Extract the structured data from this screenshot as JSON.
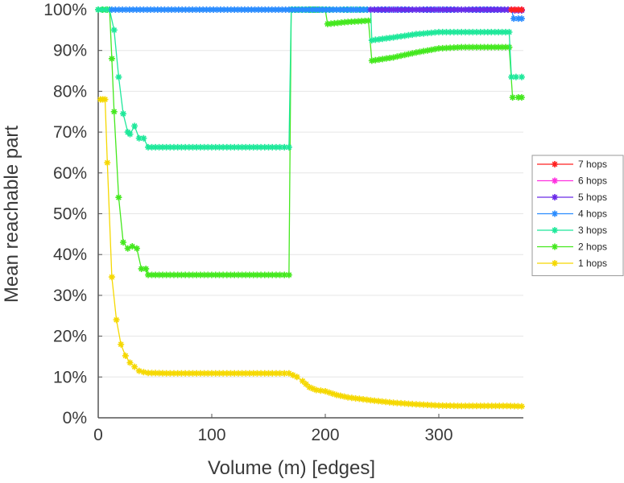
{
  "chart_data": {
    "type": "line",
    "title": "",
    "xlabel": "Volume (m) [edges]",
    "ylabel": "Mean reachable part",
    "xlim": [
      0,
      375
    ],
    "ylim": [
      0,
      100
    ],
    "xticks": [
      0,
      100,
      200,
      300
    ],
    "xtick_labels": [
      "0",
      "100",
      "200",
      "300"
    ],
    "yticks": [
      0,
      10,
      20,
      30,
      40,
      50,
      60,
      70,
      80,
      90,
      100
    ],
    "ytick_labels": [
      "0%",
      "10%",
      "20%",
      "30%",
      "40%",
      "50%",
      "60%",
      "70%",
      "80%",
      "90%",
      "100%"
    ],
    "grid": true,
    "legend_position": "right",
    "marker": "asterisk",
    "series": [
      {
        "name": "7 hops",
        "color": "#ff2020",
        "points": [
          [
            364,
            100
          ],
          [
            367,
            100
          ],
          [
            370,
            100
          ],
          [
            373,
            100
          ]
        ]
      },
      {
        "name": "6 hops",
        "color": "#ff30e0",
        "points": [
          [
            364,
            100
          ],
          [
            367,
            100
          ],
          [
            370,
            100
          ],
          [
            373,
            100
          ]
        ]
      },
      {
        "name": "5 hops",
        "color": "#6a2ae8",
        "points": [
          [
            240,
            100
          ],
          [
            260,
            100
          ],
          [
            280,
            100
          ],
          [
            300,
            100
          ],
          [
            320,
            100
          ],
          [
            340,
            100
          ],
          [
            364,
            100
          ],
          [
            367,
            99.8
          ],
          [
            370,
            99.8
          ],
          [
            373,
            99.8
          ]
        ]
      },
      {
        "name": "4 hops",
        "color": "#2a8cff",
        "points": [
          [
            12,
            100
          ],
          [
            40,
            100
          ],
          [
            80,
            100
          ],
          [
            120,
            100
          ],
          [
            150,
            100
          ],
          [
            168,
            100
          ],
          [
            240,
            100
          ],
          [
            280,
            100
          ],
          [
            320,
            100
          ],
          [
            364,
            100
          ],
          [
            366,
            97.8
          ],
          [
            370,
            97.8
          ],
          [
            373,
            97.8
          ]
        ]
      },
      {
        "name": "3 hops",
        "color": "#1ee89a",
        "points": [
          [
            0,
            100
          ],
          [
            10,
            100
          ],
          [
            14,
            95
          ],
          [
            18,
            83.5
          ],
          [
            22,
            74.5
          ],
          [
            26,
            70
          ],
          [
            28,
            69.5
          ],
          [
            32,
            71.5
          ],
          [
            36,
            68.5
          ],
          [
            40,
            68.5
          ],
          [
            44,
            66.3
          ],
          [
            60,
            66.3
          ],
          [
            80,
            66.3
          ],
          [
            100,
            66.3
          ],
          [
            120,
            66.3
          ],
          [
            140,
            66.3
          ],
          [
            160,
            66.3
          ],
          [
            168,
            66.3
          ],
          [
            170,
            100
          ],
          [
            200,
            100
          ],
          [
            220,
            100
          ],
          [
            240,
            100
          ],
          [
            241,
            92.5
          ],
          [
            260,
            93.2
          ],
          [
            280,
            94
          ],
          [
            300,
            94.5
          ],
          [
            320,
            94.5
          ],
          [
            340,
            94.5
          ],
          [
            362,
            94.5
          ],
          [
            364,
            83.5
          ],
          [
            368,
            83.5
          ],
          [
            373,
            83.5
          ]
        ]
      },
      {
        "name": "2 hops",
        "color": "#44e81e",
        "points": [
          [
            0,
            100
          ],
          [
            8,
            100
          ],
          [
            10,
            100
          ],
          [
            12,
            88
          ],
          [
            14,
            75
          ],
          [
            18,
            54
          ],
          [
            22,
            43
          ],
          [
            26,
            41.5
          ],
          [
            30,
            42
          ],
          [
            34,
            41.5
          ],
          [
            38,
            36.5
          ],
          [
            42,
            36.5
          ],
          [
            44,
            35
          ],
          [
            60,
            35
          ],
          [
            80,
            35
          ],
          [
            100,
            35
          ],
          [
            120,
            35
          ],
          [
            140,
            35
          ],
          [
            160,
            35
          ],
          [
            168,
            35
          ],
          [
            170,
            100
          ],
          [
            190,
            100
          ],
          [
            200,
            100
          ],
          [
            202,
            96.5
          ],
          [
            220,
            97
          ],
          [
            238,
            97.3
          ],
          [
            241,
            87.5
          ],
          [
            260,
            88.3
          ],
          [
            280,
            89.5
          ],
          [
            300,
            90.5
          ],
          [
            320,
            90.8
          ],
          [
            340,
            90.8
          ],
          [
            362,
            90.8
          ],
          [
            365,
            78.5
          ],
          [
            370,
            78.5
          ],
          [
            373,
            78.5
          ]
        ]
      },
      {
        "name": "1 hops",
        "color": "#f5d800",
        "points": [
          [
            2,
            78
          ],
          [
            4,
            78
          ],
          [
            6,
            78
          ],
          [
            8,
            62.5
          ],
          [
            12,
            34.5
          ],
          [
            16,
            24
          ],
          [
            20,
            18
          ],
          [
            24,
            15.2
          ],
          [
            28,
            13.5
          ],
          [
            32,
            12.5
          ],
          [
            36,
            11.5
          ],
          [
            40,
            11.2
          ],
          [
            44,
            11
          ],
          [
            60,
            10.9
          ],
          [
            80,
            10.9
          ],
          [
            100,
            10.9
          ],
          [
            120,
            10.9
          ],
          [
            140,
            10.9
          ],
          [
            160,
            10.9
          ],
          [
            168,
            10.9
          ],
          [
            175,
            10
          ],
          [
            180,
            9
          ],
          [
            186,
            7.5
          ],
          [
            192,
            6.8
          ],
          [
            200,
            6.5
          ],
          [
            210,
            5.6
          ],
          [
            220,
            5
          ],
          [
            240,
            4.3
          ],
          [
            260,
            3.7
          ],
          [
            280,
            3.3
          ],
          [
            300,
            3
          ],
          [
            320,
            2.9
          ],
          [
            340,
            2.9
          ],
          [
            360,
            2.9
          ],
          [
            373,
            2.8
          ]
        ]
      }
    ]
  }
}
